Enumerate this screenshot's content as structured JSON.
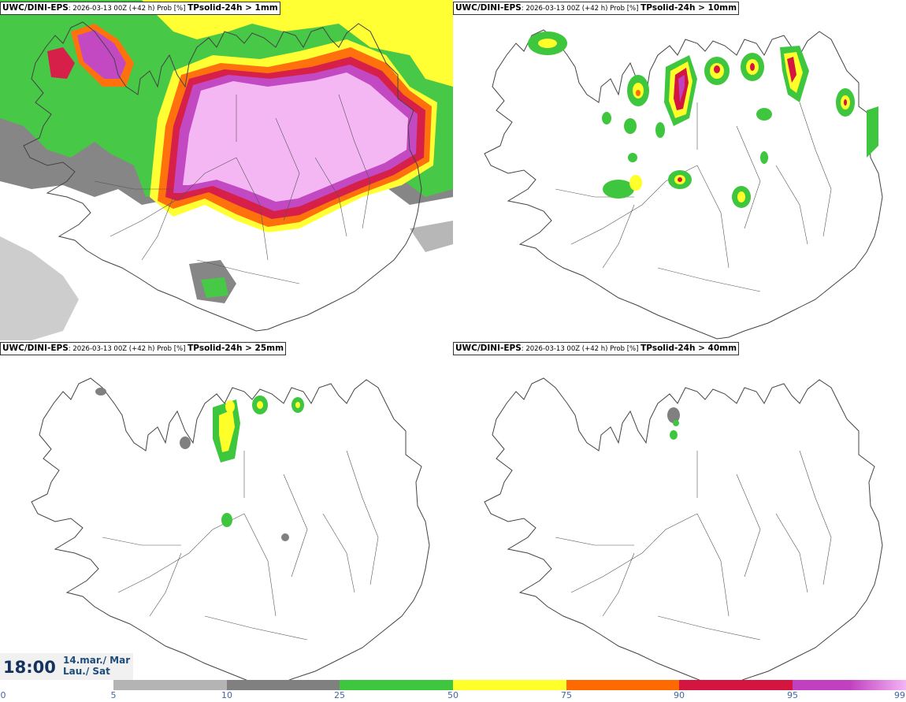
{
  "panels": [
    {
      "source": "UWC/DINI-EPS",
      "meta": ": 2026-03-13 00Z (+42 h) Prob [%] ",
      "variable": "TPsolid-24h > 1mm"
    },
    {
      "source": "UWC/DINI-EPS",
      "meta": ": 2026-03-13 00Z (+42 h) Prob [%] ",
      "variable": "TPsolid-24h > 10mm"
    },
    {
      "source": "UWC/DINI-EPS",
      "meta": ": 2026-03-13 00Z (+42 h) Prob [%] ",
      "variable": "TPsolid-24h > 25mm"
    },
    {
      "source": "UWC/DINI-EPS",
      "meta": ": 2026-03-13 00Z (+42 h) Prob [%] ",
      "variable": "TPsolid-24h > 40mm"
    }
  ],
  "valid_time": {
    "time": "18:00",
    "date_line1": "14.mar./ Mar",
    "date_line2": "Lau./ Sat"
  },
  "colorbar": {
    "ticks": [
      "0",
      "5",
      "10",
      "25",
      "50",
      "75",
      "90",
      "95",
      "99"
    ],
    "colors": [
      "#ffffff",
      "#b4b4b4",
      "#808080",
      "#3ec63e",
      "#ffff2a",
      "#ff6a00",
      "#d41540",
      "#c040c0",
      "#f4b4f4"
    ]
  },
  "map_colors": {
    "grey_light": "#b4b4b4",
    "grey_dark": "#808080",
    "green": "#3ec63e",
    "yellow": "#ffff2a",
    "orange": "#ff6a00",
    "red": "#d41540",
    "magenta": "#c040c0",
    "pink": "#f4b4f4",
    "coast": "#444444"
  }
}
